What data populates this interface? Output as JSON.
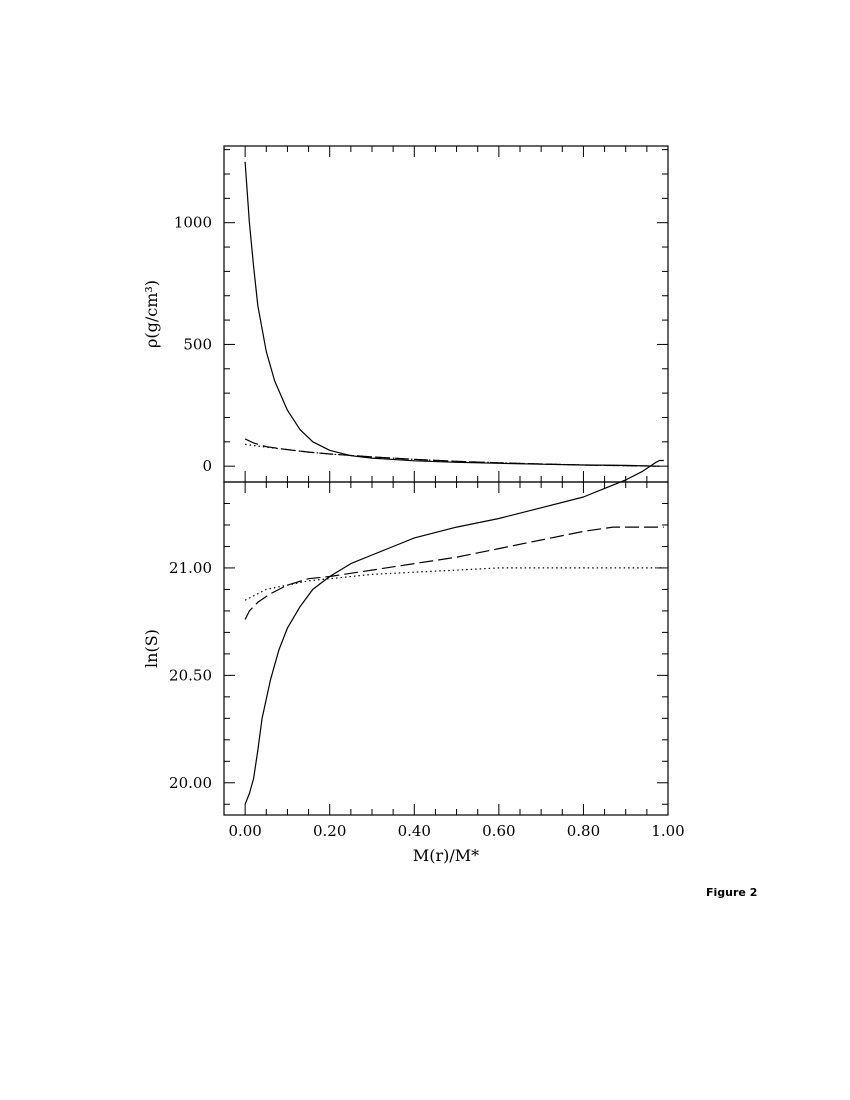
{
  "figure_caption": "Figure 2",
  "chart_data": [
    {
      "type": "line",
      "panel": "top",
      "ylabel": "ρ(g/cm³)",
      "xlabel": "",
      "xlim": [
        -0.05,
        1.0
      ],
      "ylim": [
        -65,
        1315
      ],
      "xticks": [
        0.0,
        0.2,
        0.4,
        0.6,
        0.8,
        1.0
      ],
      "x_minor_step": 0.05,
      "yticks": [
        0,
        500,
        1000
      ],
      "ytick_labels": [
        "0",
        "500",
        "1000"
      ],
      "y_minor_step": 100,
      "series": [
        {
          "style": "solid",
          "x": [
            0.0,
            0.01,
            0.02,
            0.03,
            0.05,
            0.07,
            0.1,
            0.13,
            0.16,
            0.2,
            0.25,
            0.3,
            0.4,
            0.5,
            0.6,
            0.7,
            0.8,
            0.9,
            0.98
          ],
          "y": [
            1250,
            1000,
            820,
            660,
            470,
            350,
            230,
            150,
            100,
            65,
            43,
            33,
            22,
            16,
            12,
            8,
            5,
            3,
            0
          ]
        },
        {
          "style": "dashed",
          "x": [
            0.0,
            0.02,
            0.05,
            0.1,
            0.15,
            0.2,
            0.3,
            0.4,
            0.5,
            0.6,
            0.7,
            0.8,
            0.9,
            0.98
          ],
          "y": [
            112,
            95,
            80,
            68,
            58,
            50,
            38,
            28,
            20,
            14,
            9,
            5,
            2,
            0
          ]
        },
        {
          "style": "dotted",
          "x": [
            0.0,
            0.05,
            0.1,
            0.15,
            0.2,
            0.3,
            0.4,
            0.5,
            0.6,
            0.7,
            0.8,
            0.9,
            0.98
          ],
          "y": [
            90,
            78,
            68,
            58,
            50,
            38,
            28,
            20,
            14,
            9,
            5,
            2,
            0
          ]
        }
      ]
    },
    {
      "type": "line",
      "panel": "bottom",
      "ylabel": "ln(S)",
      "xlabel": "M(r)/M*",
      "xlim": [
        -0.05,
        1.0
      ],
      "ylim": [
        19.85,
        21.4
      ],
      "xticks": [
        0.0,
        0.2,
        0.4,
        0.6,
        0.8,
        1.0
      ],
      "xtick_labels": [
        "0.00",
        "0.20",
        "0.40",
        "0.60",
        "0.80",
        "1.00"
      ],
      "x_minor_step": 0.05,
      "yticks": [
        20.0,
        20.5,
        21.0
      ],
      "ytick_labels": [
        "20.00",
        "20.50",
        "21.00"
      ],
      "y_minor_step": 0.1,
      "series": [
        {
          "style": "solid",
          "x": [
            0.0,
            0.01,
            0.02,
            0.03,
            0.04,
            0.06,
            0.08,
            0.1,
            0.13,
            0.16,
            0.2,
            0.25,
            0.3,
            0.35,
            0.4,
            0.5,
            0.6,
            0.7,
            0.8,
            0.85,
            0.9,
            0.94,
            0.97,
            0.98,
            0.99
          ],
          "y": [
            19.9,
            19.95,
            20.02,
            20.15,
            20.3,
            20.48,
            20.62,
            20.72,
            20.82,
            20.9,
            20.96,
            21.02,
            21.06,
            21.1,
            21.14,
            21.19,
            21.23,
            21.28,
            21.33,
            21.37,
            21.41,
            21.45,
            21.49,
            21.5,
            21.5
          ]
        },
        {
          "style": "dashed",
          "x": [
            0.0,
            0.01,
            0.03,
            0.06,
            0.1,
            0.15,
            0.2,
            0.3,
            0.4,
            0.5,
            0.6,
            0.7,
            0.8,
            0.87,
            0.9,
            0.95,
            0.99
          ],
          "y": [
            20.76,
            20.8,
            20.84,
            20.88,
            20.92,
            20.95,
            20.96,
            20.99,
            21.02,
            21.05,
            21.09,
            21.13,
            21.17,
            21.19,
            21.19,
            21.19,
            21.19
          ]
        },
        {
          "style": "dotted",
          "x": [
            0.0,
            0.02,
            0.05,
            0.1,
            0.15,
            0.2,
            0.3,
            0.4,
            0.5,
            0.6,
            0.7,
            0.8,
            0.9,
            0.99
          ],
          "y": [
            20.85,
            20.87,
            20.9,
            20.92,
            20.94,
            20.95,
            20.97,
            20.98,
            20.99,
            21.0,
            21.0,
            21.0,
            21.0,
            21.0
          ]
        }
      ]
    }
  ]
}
